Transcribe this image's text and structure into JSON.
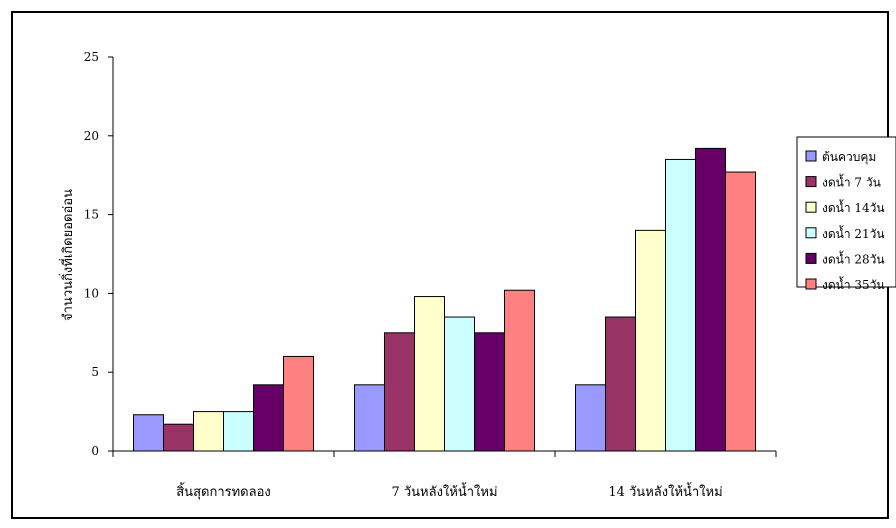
{
  "chart_data": {
    "type": "bar",
    "title": "",
    "xlabel": "",
    "ylabel": "จำนวนกิ่งที่เกิดยอดอ่อน",
    "ylim": [
      0,
      25
    ],
    "yticks": [
      0,
      5,
      10,
      15,
      20,
      25
    ],
    "categories": [
      "สิ้นสุดการทดลอง",
      "7  วันหลังให้น้ำใหม่",
      "14  วันหลังให้น้ำใหม่"
    ],
    "series": [
      {
        "name": "ต้นควบคุม",
        "color": "#9999FF",
        "values": [
          2.3,
          4.2,
          4.2
        ]
      },
      {
        "name": "งดน้ำ 7 วัน",
        "color": "#993366",
        "values": [
          1.7,
          7.5,
          8.5
        ]
      },
      {
        "name": "งดน้ำ 14วัน",
        "color": "#FFFFCC",
        "values": [
          2.5,
          9.8,
          14.0
        ]
      },
      {
        "name": "งดน้ำ 21วัน",
        "color": "#CCFFFF",
        "values": [
          2.5,
          8.5,
          18.5
        ]
      },
      {
        "name": "งดน้ำ 28วัน",
        "color": "#660066",
        "values": [
          4.2,
          7.5,
          19.2
        ]
      },
      {
        "name": "งดน้ำ 35วัน",
        "color": "#FF8080",
        "values": [
          6.0,
          10.2,
          17.7
        ]
      }
    ],
    "grid": false,
    "legend": "right"
  }
}
